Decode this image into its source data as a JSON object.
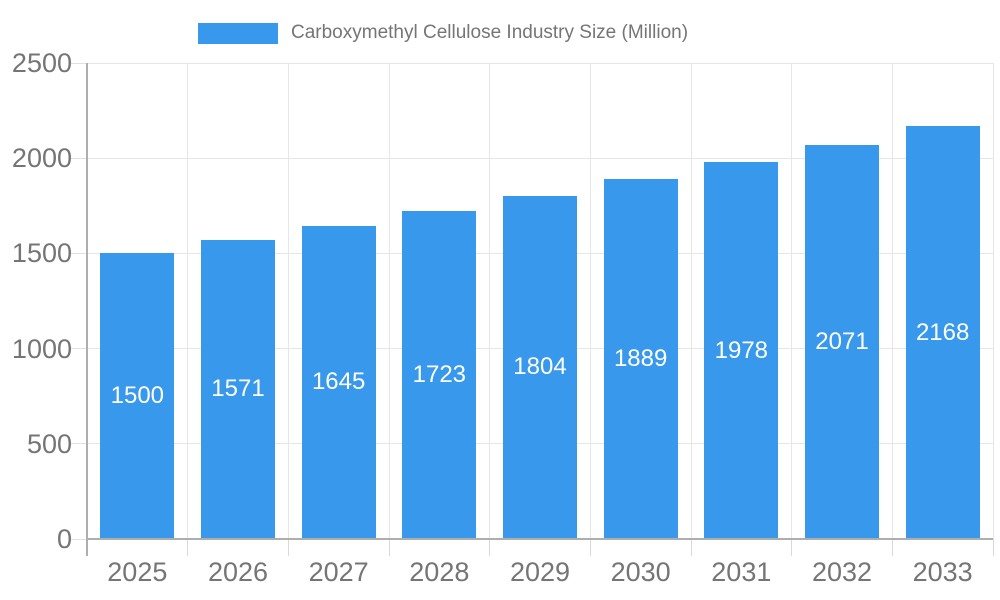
{
  "chart_data": {
    "type": "bar",
    "legend": "Carboxymethyl Cellulose Industry Size (Million)",
    "legend_position": "top",
    "categories": [
      "2025",
      "2026",
      "2027",
      "2028",
      "2029",
      "2030",
      "2031",
      "2032",
      "2033"
    ],
    "values": [
      1500,
      1571,
      1645,
      1723,
      1804,
      1889,
      1978,
      2071,
      2168
    ],
    "ylim": [
      0,
      2500
    ],
    "yticks": [
      0,
      500,
      1000,
      1500,
      2000,
      2500
    ],
    "grid": true,
    "bar_color": "#3898EC",
    "grid_color": "#e6e6e6",
    "axis_color": "#aeaeae",
    "tick_color": "#d9d9d9",
    "y_tick_dash_color": "#e0e0e0",
    "text_color": "#757575",
    "value_label_color": "#ffffff"
  }
}
